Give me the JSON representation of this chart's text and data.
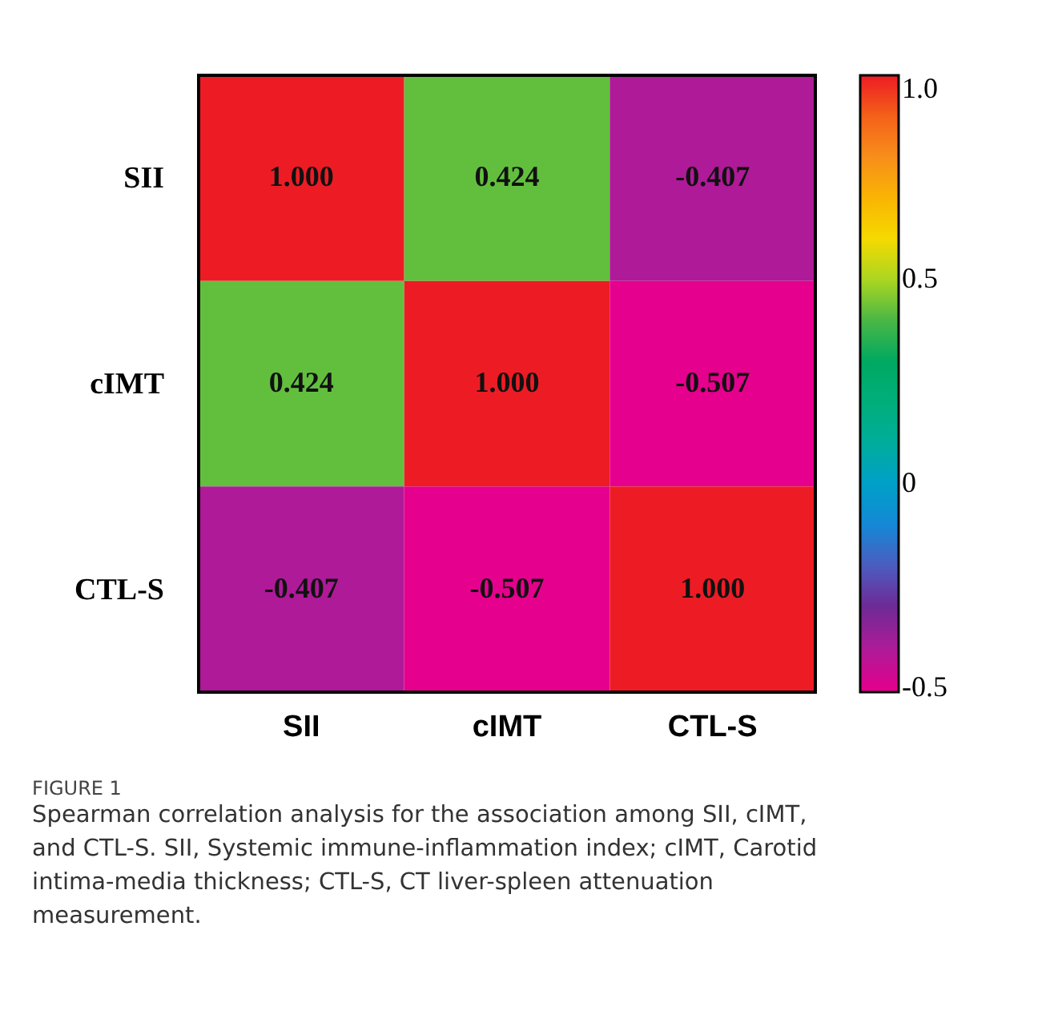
{
  "chart_data": {
    "type": "heatmap",
    "categories": [
      "SII",
      "cIMT",
      "CTL-S"
    ],
    "y_categories": [
      "SII",
      "cIMT",
      "CTL-S"
    ],
    "cells": [
      [
        1.0,
        0.424,
        -0.407
      ],
      [
        0.424,
        1.0,
        -0.507
      ],
      [
        -0.407,
        -0.507,
        1.0
      ]
    ],
    "cell_labels": [
      [
        "1.000",
        "0.424",
        "-0.407"
      ],
      [
        "0.424",
        "1.000",
        "-0.507"
      ],
      [
        "-0.407",
        "-0.507",
        "1.000"
      ]
    ],
    "clim": [
      -0.51,
      1.0
    ],
    "cticks": [
      {
        "value": 1.0,
        "label": "1.0"
      },
      0.5,
      0,
      -0.5
    ],
    "annotations": [
      "FIGURE 1",
      "Spearman correlation analysis for the association among SII, cIMT, and CTL-S. SII, Systemic immune-inflammation index; cIMT, Carotid intima-media thickness; CTL-S, CT liver-spleen attenuation measurement."
    ]
  }
}
